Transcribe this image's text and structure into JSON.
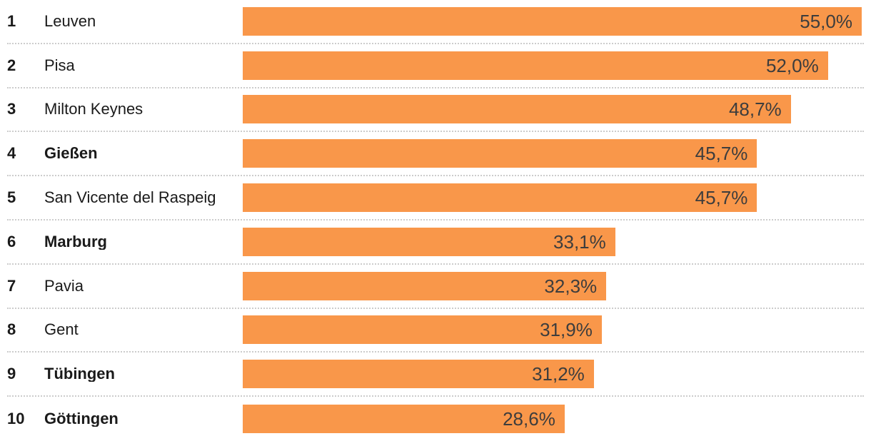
{
  "chart_data": {
    "type": "bar",
    "orientation": "horizontal",
    "title": "",
    "xlabel": "",
    "ylabel": "",
    "xlim": [
      0,
      55.0
    ],
    "grid": false,
    "legend": false,
    "bar_color": "#F9974A",
    "value_text_color": "#3d3d3d",
    "label_text_color": "#1a1a1a",
    "separator_color": "#cccccc",
    "separator_style": "dotted",
    "categories": [
      "Leuven",
      "Pisa",
      "Milton Keynes",
      "Gießen",
      "San Vicente del Raspeig",
      "Marburg",
      "Pavia",
      "Gent",
      "Tübingen",
      "Göttingen"
    ],
    "values": [
      55.0,
      52.0,
      48.7,
      45.7,
      45.7,
      33.1,
      32.3,
      31.9,
      31.2,
      28.6
    ],
    "value_labels": [
      "55,0%",
      "52,0%",
      "48,7%",
      "45,7%",
      "45,7%",
      "33,1%",
      "32,3%",
      "31,9%",
      "31,2%",
      "28,6%"
    ],
    "ranks": [
      "1",
      "2",
      "3",
      "4",
      "5",
      "6",
      "7",
      "8",
      "9",
      "10"
    ],
    "bold_categories": [
      false,
      false,
      false,
      true,
      false,
      true,
      false,
      false,
      true,
      true
    ]
  }
}
